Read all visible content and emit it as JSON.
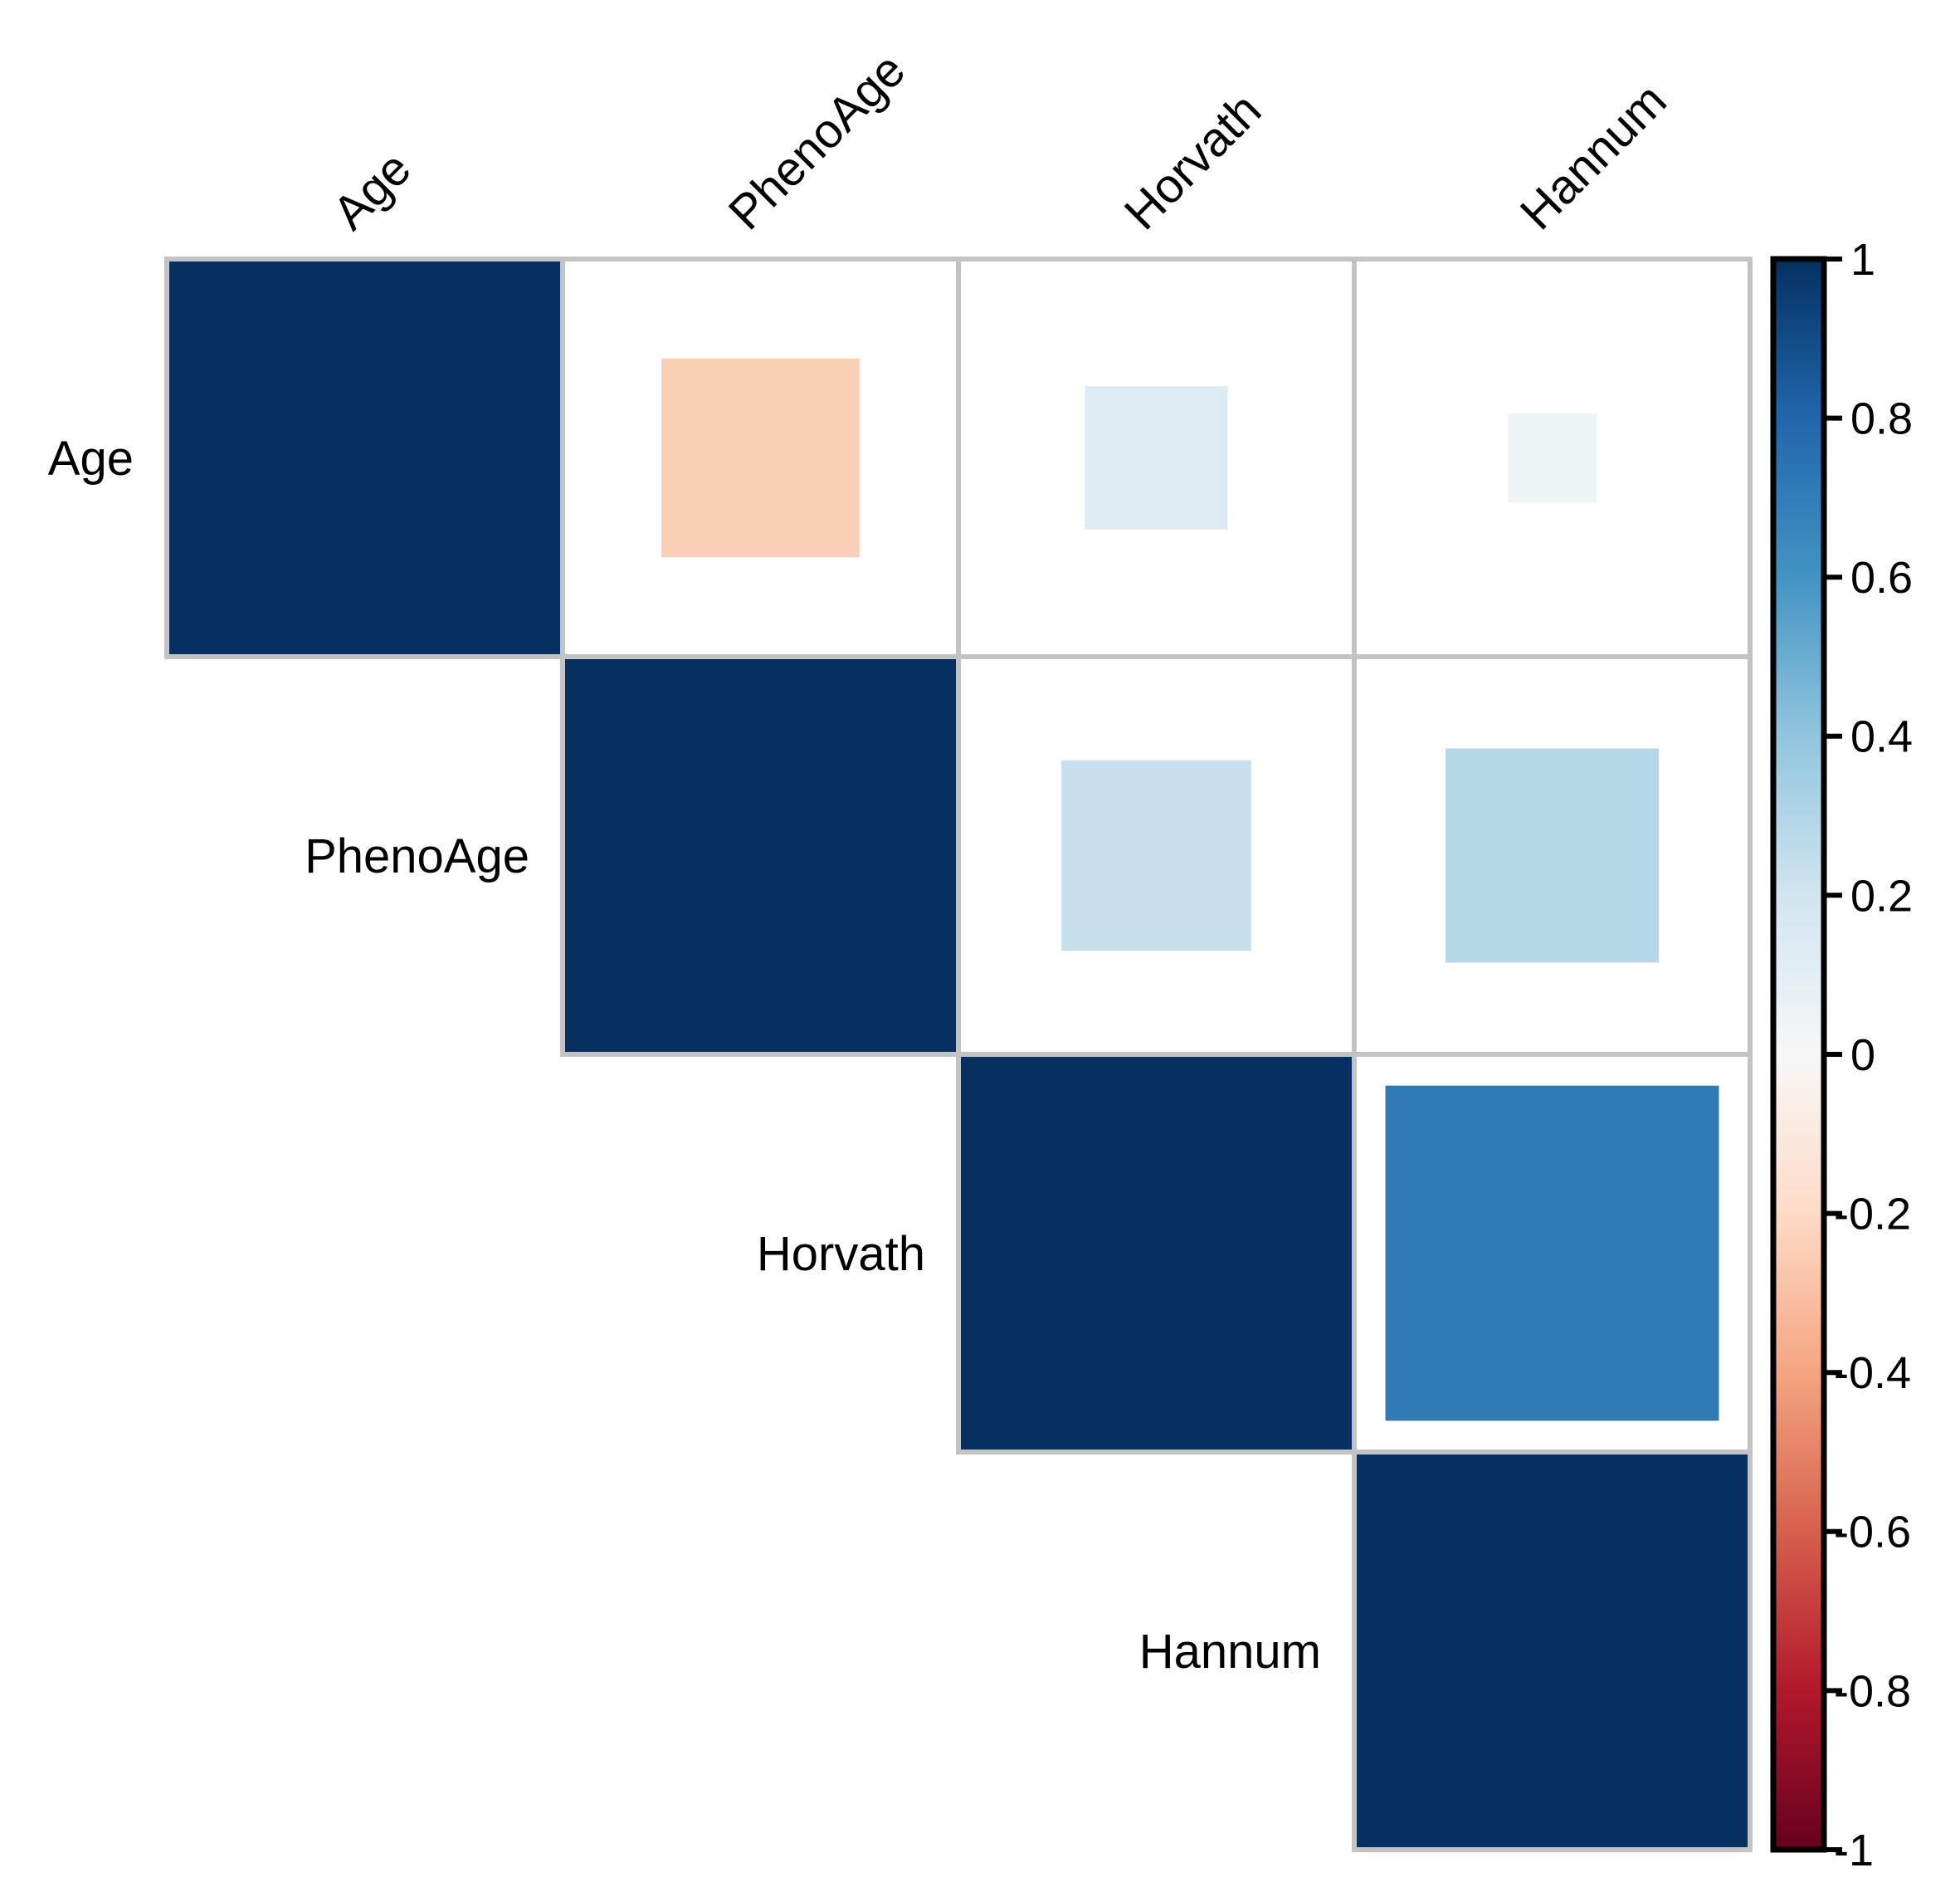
{
  "chart_data": {
    "type": "heatmap",
    "subtype": "correlation-matrix-upper-triangle",
    "method": "square",
    "title": "",
    "variables": [
      "Age",
      "PhenoAge",
      "Horvath",
      "Hannum"
    ],
    "cells": [
      {
        "row": "Age",
        "col": "Age",
        "r": 1.0
      },
      {
        "row": "Age",
        "col": "PhenoAge",
        "r": -0.25
      },
      {
        "row": "Age",
        "col": "Horvath",
        "r": 0.13
      },
      {
        "row": "Age",
        "col": "Hannum",
        "r": 0.05
      },
      {
        "row": "PhenoAge",
        "col": "PhenoAge",
        "r": 1.0
      },
      {
        "row": "PhenoAge",
        "col": "Horvath",
        "r": 0.23
      },
      {
        "row": "PhenoAge",
        "col": "Hannum",
        "r": 0.29
      },
      {
        "row": "Horvath",
        "col": "Horvath",
        "r": 1.0
      },
      {
        "row": "Horvath",
        "col": "Hannum",
        "r": 0.71
      },
      {
        "row": "Hannum",
        "col": "Hannum",
        "r": 1.0
      }
    ],
    "colorbar": {
      "position": "right",
      "range": [
        -1,
        1
      ],
      "ticks": [
        {
          "label": "1",
          "value": 1
        },
        {
          "label": "0.8",
          "value": 0.8
        },
        {
          "label": "0.6",
          "value": 0.6
        },
        {
          "label": "0.4",
          "value": 0.4
        },
        {
          "label": "0.2",
          "value": 0.2
        },
        {
          "label": "0",
          "value": 0
        },
        {
          "label": "-0.2",
          "value": -0.2
        },
        {
          "label": "-0.4",
          "value": -0.4
        },
        {
          "label": "-0.6",
          "value": -0.6
        },
        {
          "label": "-0.8",
          "value": -0.8
        },
        {
          "label": "-1",
          "value": -1
        }
      ],
      "palette_low_to_high": [
        "#67001f",
        "#b2182b",
        "#d6604d",
        "#f4a582",
        "#fddbc7",
        "#f7f7f7",
        "#d1e5f0",
        "#92c5de",
        "#4393c3",
        "#2166ac",
        "#053061"
      ]
    },
    "grid": true,
    "legend_position": "right"
  },
  "colors": {
    "background": "#ffffff",
    "grid_line": "#c3c3c3",
    "colorbar_frame": "#000000",
    "text": "#000000",
    "max_positive": "#053061",
    "max_negative": "#67001f"
  }
}
